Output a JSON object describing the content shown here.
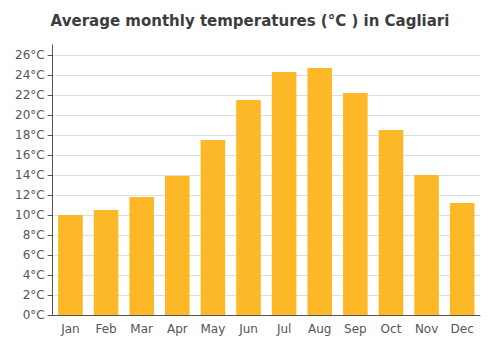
{
  "chart_data": {
    "type": "bar",
    "title": "Average monthly temperatures (°C ) in Cagliari",
    "categories": [
      "Jan",
      "Feb",
      "Mar",
      "Apr",
      "May",
      "Jun",
      "Jul",
      "Aug",
      "Sep",
      "Oct",
      "Nov",
      "Dec"
    ],
    "values": [
      10.0,
      10.5,
      11.8,
      13.9,
      17.5,
      21.5,
      24.3,
      24.7,
      22.2,
      18.5,
      14.0,
      11.2
    ],
    "color": "#FDB827",
    "ylim": [
      0,
      27
    ],
    "yticks": [
      {
        "value": 0,
        "label": "0°C"
      },
      {
        "value": 2,
        "label": "2°C"
      },
      {
        "value": 4,
        "label": "4°C"
      },
      {
        "value": 6,
        "label": "6°C"
      },
      {
        "value": 8,
        "label": "8°C"
      },
      {
        "value": 10,
        "label": "10°C"
      },
      {
        "value": 12,
        "label": "12°C"
      },
      {
        "value": 14,
        "label": "14°C"
      },
      {
        "value": 16,
        "label": "16°C"
      },
      {
        "value": 18,
        "label": "18°C"
      },
      {
        "value": 20,
        "label": "20°C"
      },
      {
        "value": 22,
        "label": "22°C"
      },
      {
        "value": 24,
        "label": "24°C"
      },
      {
        "value": 26,
        "label": "26°C"
      }
    ],
    "grid": true
  }
}
